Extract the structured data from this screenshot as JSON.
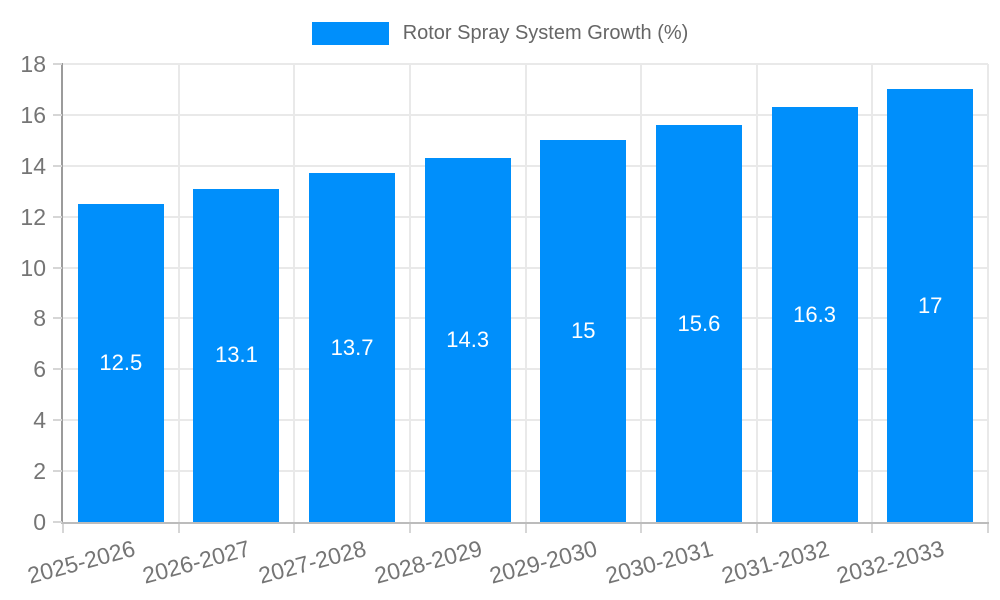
{
  "legend": {
    "label": "Rotor Spray System Growth (%)"
  },
  "colors": {
    "bar": "#008FFB",
    "grid": "#e9e9e9",
    "axis_y": "#9b9b9b",
    "axis_x": "#bcbcbc",
    "tick_mark": "#d6d6d6",
    "tick_text": "#757575",
    "legend_text": "#666666",
    "value_text": "#ffffff",
    "background": "#ffffff"
  },
  "chart_data": {
    "type": "bar",
    "title": "Rotor Spray System Growth (%)",
    "categories": [
      "2025-2026",
      "2026-2027",
      "2027-2028",
      "2028-2029",
      "2029-2030",
      "2030-2031",
      "2031-2032",
      "2032-2033"
    ],
    "series": [
      {
        "name": "Rotor Spray System Growth (%)",
        "values": [
          12.5,
          13.1,
          13.7,
          14.3,
          15,
          15.6,
          16.3,
          17
        ]
      }
    ],
    "value_labels": [
      "12.5",
      "13.1",
      "13.7",
      "14.3",
      "15",
      "15.6",
      "16.3",
      "17"
    ],
    "xlabel": "",
    "ylabel": "",
    "ylim": [
      0,
      18
    ],
    "yticks": [
      0,
      2,
      4,
      6,
      8,
      10,
      12,
      14,
      16,
      18
    ],
    "grid": true,
    "legend_position": "top",
    "value_label_position": "inside-center",
    "x_label_rotation_deg": -15
  }
}
